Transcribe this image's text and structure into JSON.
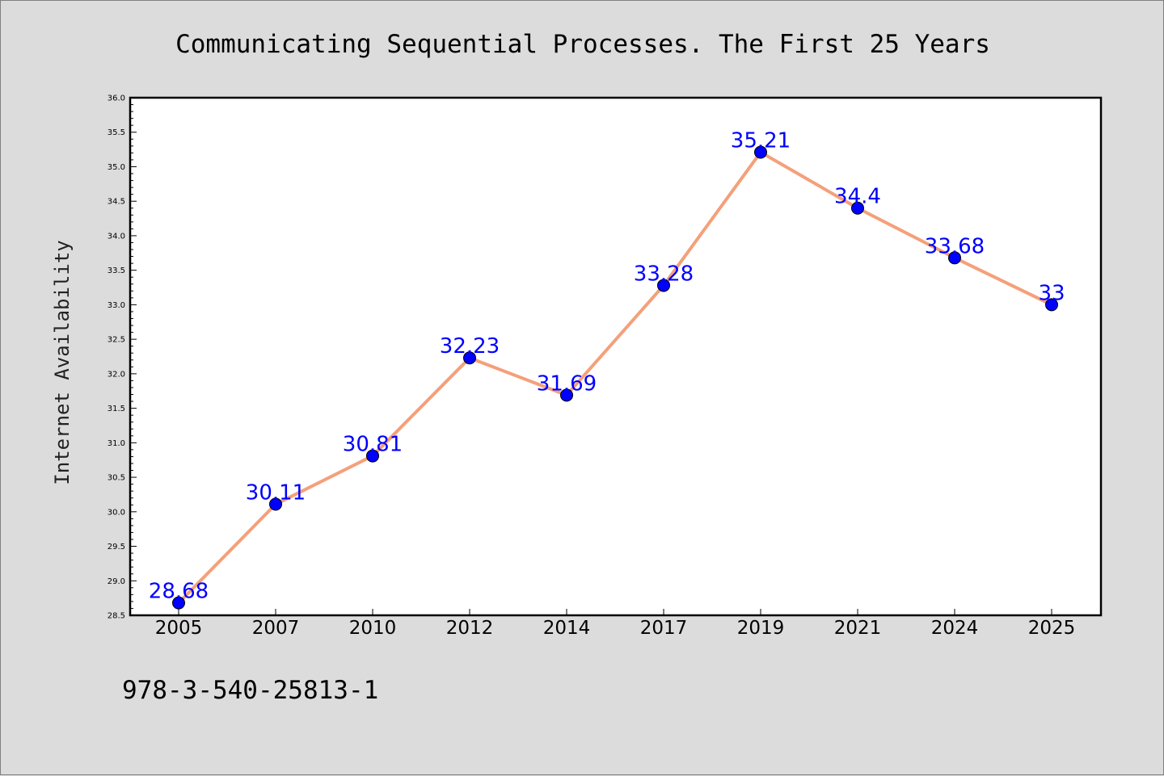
{
  "chart_data": {
    "type": "line",
    "title": "Communicating Sequential Processes. The First 25 Years",
    "xlabel": "",
    "ylabel": "Internet Availability",
    "categories": [
      "2005",
      "2007",
      "2010",
      "2012",
      "2014",
      "2017",
      "2019",
      "2021",
      "2024",
      "2025"
    ],
    "values": [
      28.68,
      30.11,
      30.81,
      32.23,
      31.69,
      33.28,
      35.21,
      34.4,
      33.68,
      33
    ],
    "data_labels": [
      "28.68",
      "30.11",
      "30.81",
      "32.23",
      "31.69",
      "33.28",
      "35.21",
      "34.4",
      "33.68",
      "33"
    ],
    "ylim": [
      28.5,
      36.0
    ],
    "yticks": [
      "28.5",
      "29.0",
      "29.5",
      "30.0",
      "30.5",
      "31.0",
      "31.5",
      "32.0",
      "32.5",
      "33.0",
      "33.5",
      "34.0",
      "34.5",
      "35.0",
      "35.5",
      "36.0"
    ],
    "grid": false,
    "line_color": "#f4a07a",
    "marker_color": "#0000ff",
    "label_color": "#0000ff"
  },
  "footer": {
    "isbn": "978-3-540-25813-1"
  }
}
